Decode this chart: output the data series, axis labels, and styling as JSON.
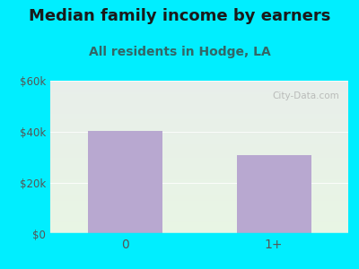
{
  "title": "Median family income by earners",
  "subtitle": "All residents in Hodge, LA",
  "categories": [
    "0",
    "1+"
  ],
  "values": [
    40500,
    31000
  ],
  "bar_color": "#b8a8d0",
  "title_fontsize": 13,
  "subtitle_fontsize": 10,
  "subtitle_color": "#336666",
  "title_color": "#1a1a1a",
  "tick_color": "#555555",
  "ylim": [
    0,
    60000
  ],
  "yticks": [
    0,
    20000,
    40000,
    60000
  ],
  "ytick_labels": [
    "$0",
    "$20k",
    "$40k",
    "$60k"
  ],
  "background_outer": "#00eeff",
  "bg_top_color": "#e8eeea",
  "bg_bottom_color": "#e8f5e4",
  "watermark": "City-Data.com",
  "bar_width": 0.5
}
